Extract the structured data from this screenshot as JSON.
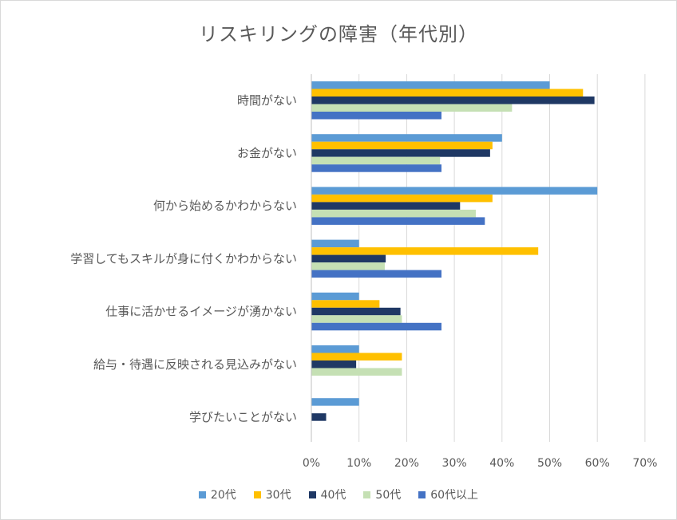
{
  "chart_data": {
    "type": "bar",
    "orientation": "horizontal",
    "title": "リスキリングの障害（年代別）",
    "categories": [
      "時間がない",
      "お金がない",
      "何から始めるかわからない",
      "学習してもスキルが身に付くかわからない",
      "仕事に活かせるイメージが湧かない",
      "給与・待遇に反映される見込みがない",
      "学びたいことがない"
    ],
    "series": [
      {
        "name": "20代",
        "color": "#5b9bd5",
        "values": [
          0.5,
          0.4,
          0.6,
          0.1,
          0.1,
          0.1,
          0.1
        ]
      },
      {
        "name": "30代",
        "color": "#ffc000",
        "values": [
          0.57,
          0.38,
          0.38,
          0.476,
          0.143,
          0.19,
          0
        ]
      },
      {
        "name": "40代",
        "color": "#1f3864",
        "values": [
          0.594,
          0.375,
          0.312,
          0.156,
          0.187,
          0.094,
          0.031
        ]
      },
      {
        "name": "50代",
        "color": "#c5e0b4",
        "values": [
          0.421,
          0.27,
          0.345,
          0.154,
          0.19,
          0.19,
          0
        ]
      },
      {
        "name": "60代以上",
        "color": "#4472c4",
        "values": [
          0.273,
          0.273,
          0.364,
          0.273,
          0.273,
          0,
          0
        ]
      }
    ],
    "xlim": [
      0,
      0.7
    ],
    "ticks": [
      "0%",
      "10%",
      "20%",
      "30%",
      "40%",
      "50%",
      "60%",
      "70%"
    ],
    "grid": true,
    "legend": "bottom"
  }
}
